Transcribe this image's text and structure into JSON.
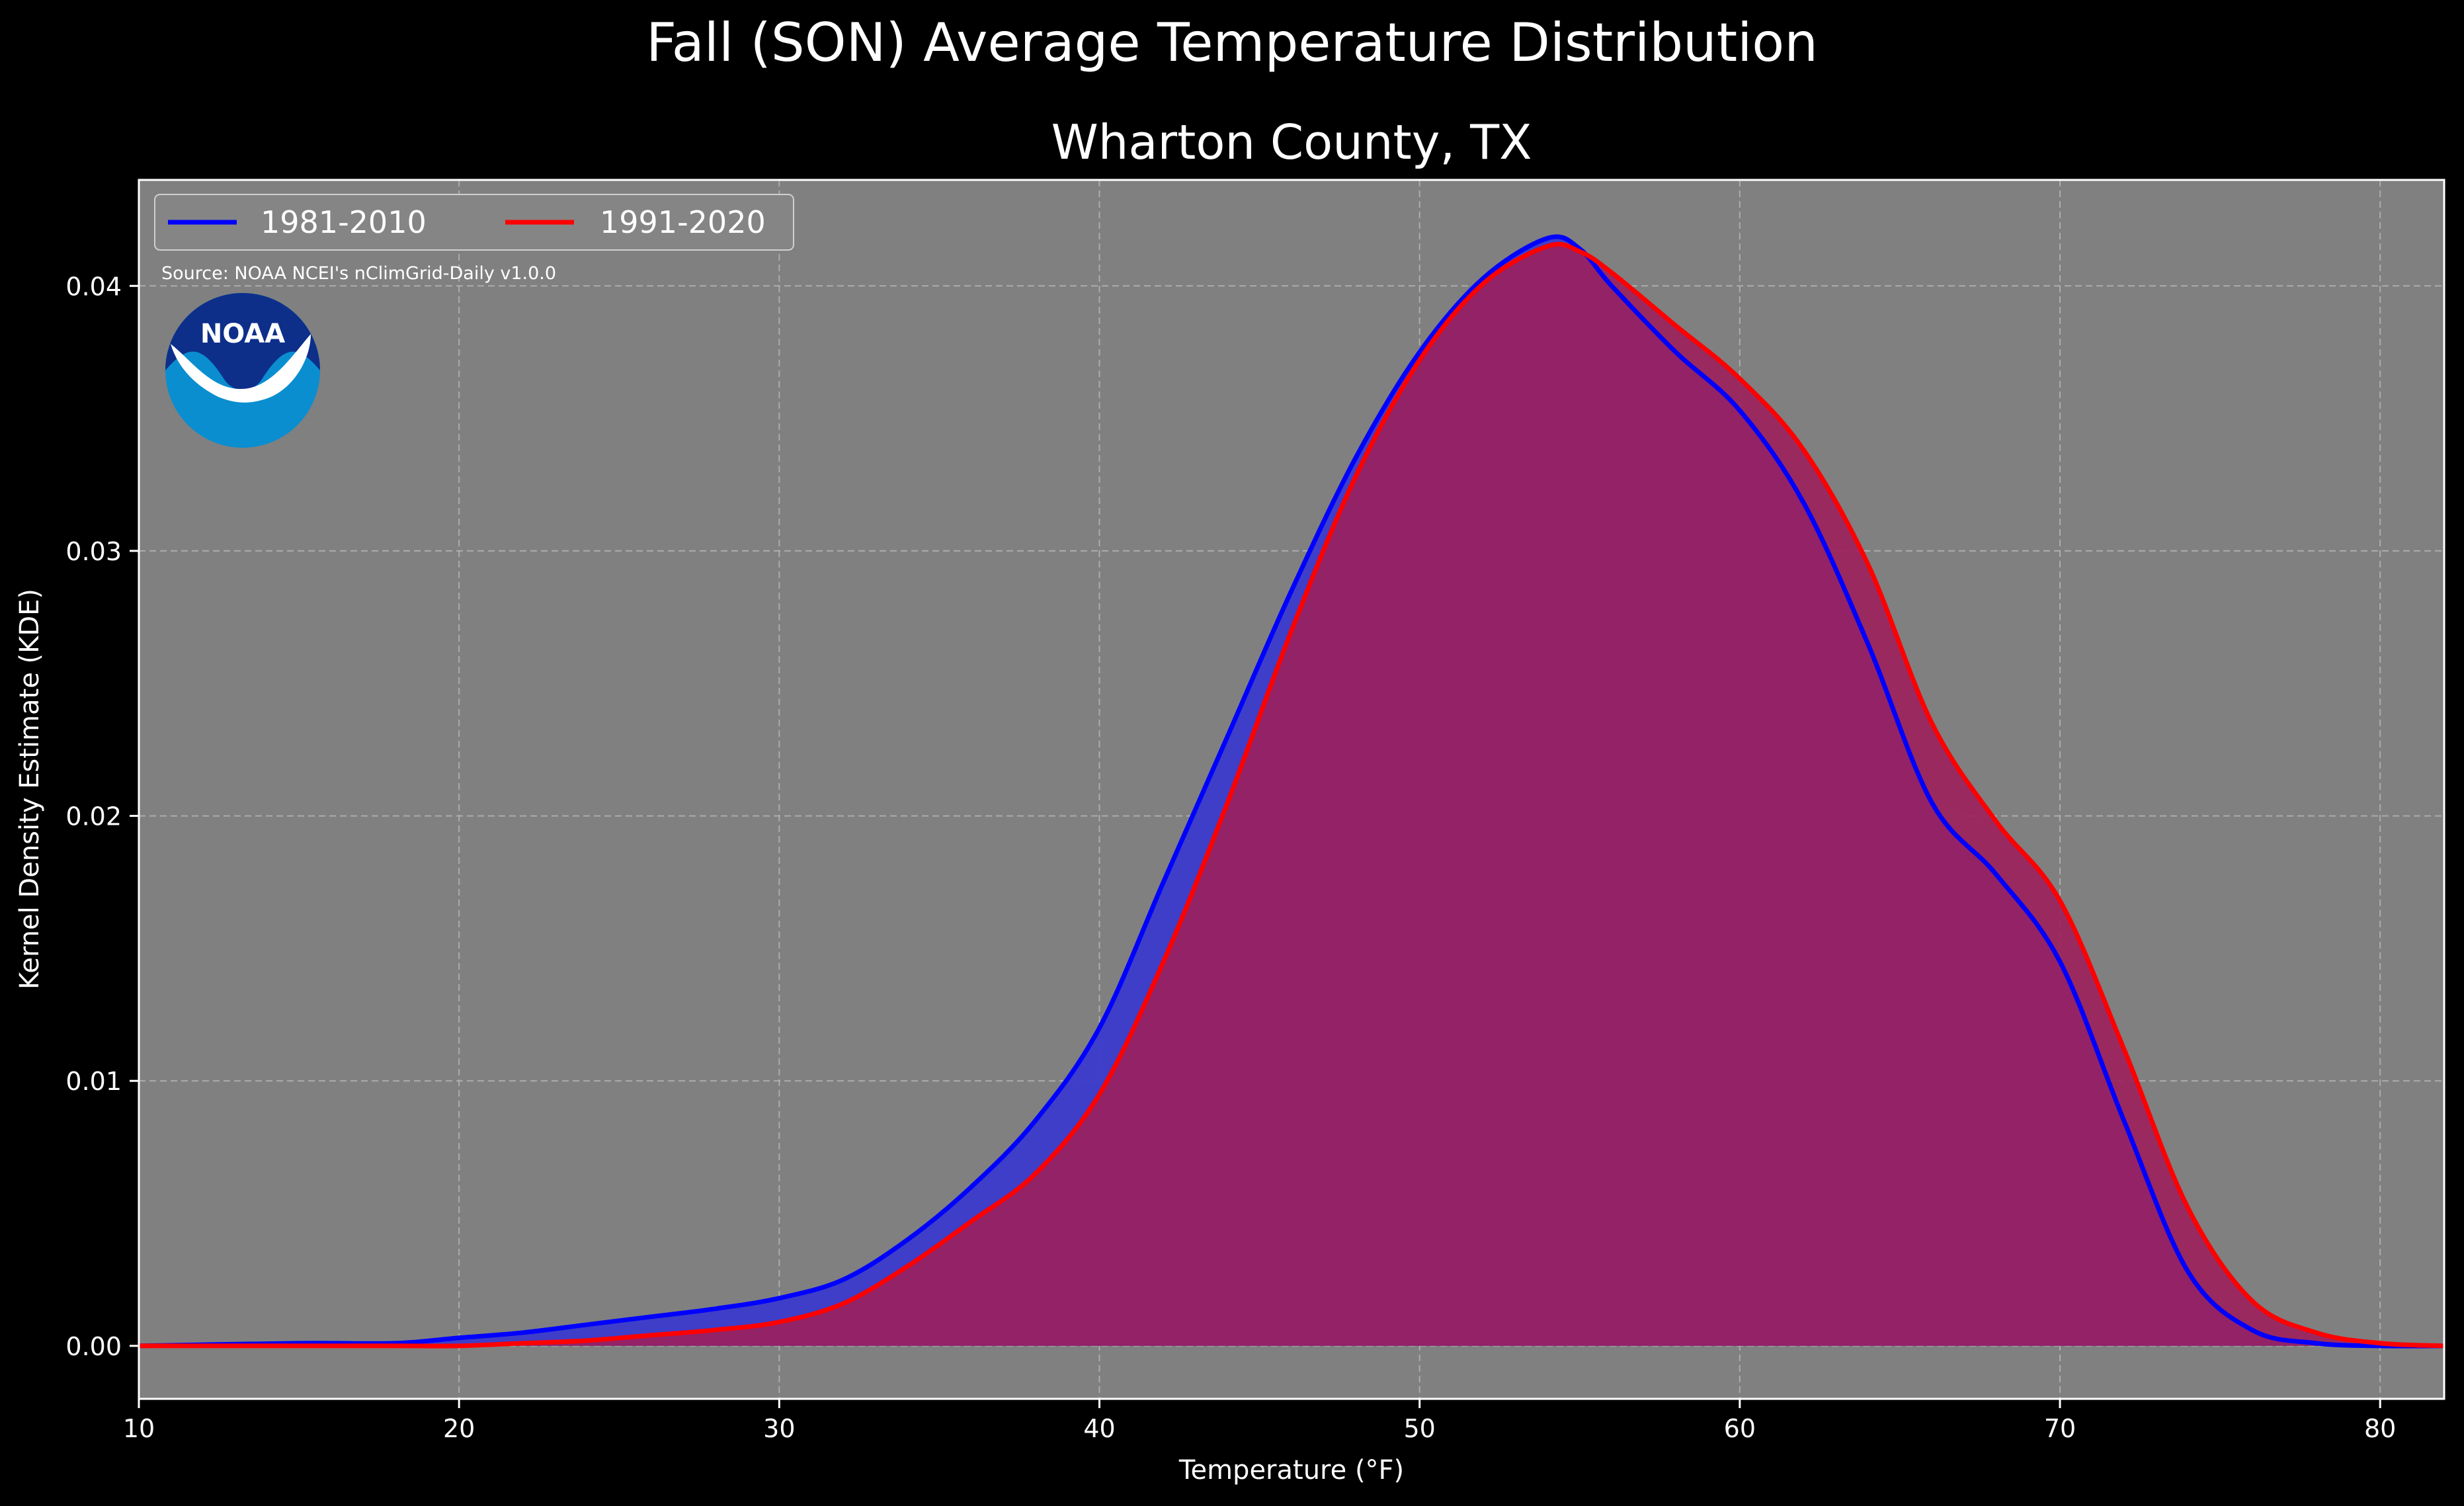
{
  "chart_data": {
    "type": "area",
    "title": "Fall (SON) Average Temperature Distribution",
    "subtitle": "Wharton County, TX",
    "xlabel": "Temperature (°F)",
    "ylabel": "Kernel Density Estimate (KDE)",
    "xlim": [
      10,
      82
    ],
    "ylim": [
      -0.002,
      0.044
    ],
    "xticks": [
      10,
      20,
      30,
      40,
      50,
      60,
      70,
      80
    ],
    "yticks": [
      0.0,
      0.01,
      0.02,
      0.03,
      0.04
    ],
    "xtick_labels": [
      "10",
      "20",
      "30",
      "40",
      "50",
      "60",
      "70",
      "80"
    ],
    "ytick_labels": [
      "0.00",
      "0.01",
      "0.02",
      "0.03",
      "0.04"
    ],
    "grid": true,
    "legend_position": "top-left",
    "source_note": "Source: NOAA NCEI's nClimGrid-Daily v1.0.0",
    "logo_text": "NOAA",
    "colors": {
      "background": "#000000",
      "plot_background": "#808080",
      "series_1": "#0000ff",
      "series_2": "#ff0000",
      "fill_1": "#3a3acc",
      "fill_2": "#9c1f5c",
      "logo_outer": "#0a8ed0",
      "logo_inner": "#0d2f8a"
    },
    "series": [
      {
        "name": "1981-2010",
        "color": "#0000ff",
        "x": [
          10,
          15,
          18,
          20,
          22,
          24,
          26,
          28,
          30,
          32,
          34,
          36,
          38,
          40,
          42,
          44,
          46,
          48,
          50,
          52,
          54,
          55,
          56,
          58,
          60,
          62,
          64,
          66,
          68,
          70,
          72,
          74,
          76,
          78,
          80,
          82
        ],
        "y": [
          0.0,
          0.0001,
          0.0001,
          0.0003,
          0.0005,
          0.0008,
          0.0011,
          0.0014,
          0.0018,
          0.0025,
          0.004,
          0.006,
          0.0085,
          0.012,
          0.0175,
          0.023,
          0.0285,
          0.0335,
          0.0375,
          0.0403,
          0.0418,
          0.0414,
          0.04,
          0.0375,
          0.0353,
          0.0318,
          0.0265,
          0.0205,
          0.0178,
          0.0145,
          0.0085,
          0.0028,
          0.0006,
          0.0001,
          0.0,
          0.0
        ]
      },
      {
        "name": "1991-2020",
        "color": "#ff0000",
        "x": [
          10,
          15,
          18,
          20,
          22,
          24,
          26,
          28,
          30,
          32,
          34,
          36,
          38,
          40,
          42,
          44,
          46,
          48,
          50,
          52,
          54,
          55,
          56,
          58,
          60,
          62,
          64,
          66,
          68,
          70,
          72,
          74,
          76,
          78,
          80,
          82
        ],
        "y": [
          0.0,
          0.0,
          0.0,
          0.0,
          0.0001,
          0.0002,
          0.0004,
          0.0006,
          0.0009,
          0.0016,
          0.003,
          0.0047,
          0.0065,
          0.0095,
          0.0145,
          0.0205,
          0.027,
          0.0328,
          0.0372,
          0.0401,
          0.0415,
          0.0413,
          0.0405,
          0.0385,
          0.0365,
          0.0338,
          0.0295,
          0.0235,
          0.0198,
          0.0168,
          0.0112,
          0.0052,
          0.0017,
          0.0005,
          0.0001,
          0.0
        ]
      }
    ]
  }
}
